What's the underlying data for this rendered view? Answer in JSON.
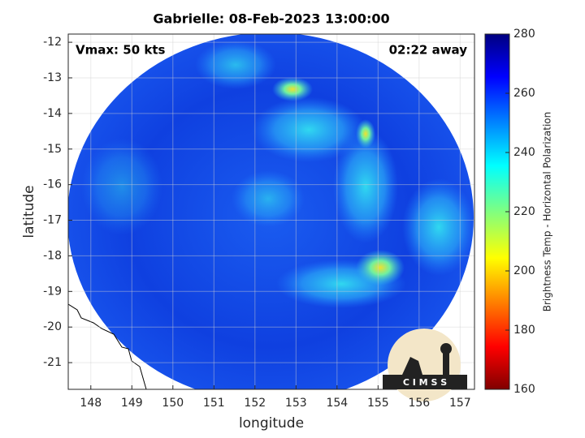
{
  "map": {
    "title": "Gabrielle: 08-Feb-2023 13:00:00",
    "annotations": [
      "Vmax: 50 kts",
      "02:22 away"
    ],
    "xlabel": "longitude",
    "ylabel": "latitude",
    "xlim": [
      147.45,
      157.35
    ],
    "ylim": [
      -21.75,
      -11.77
    ],
    "xticks": [
      148,
      149,
      150,
      151,
      152,
      153,
      154,
      155,
      156,
      157
    ],
    "yticks": [
      -21,
      -20,
      -19,
      -18,
      -17,
      -16,
      -15,
      -14,
      -13,
      -12
    ],
    "grid": true,
    "colorbar": {
      "label": "Brightness Temp - Horizontal Polarization",
      "lim": [
        160,
        280
      ],
      "ticks": [
        160,
        180,
        200,
        220,
        240,
        260,
        280
      ]
    },
    "logo": "C I M S S"
  }
}
